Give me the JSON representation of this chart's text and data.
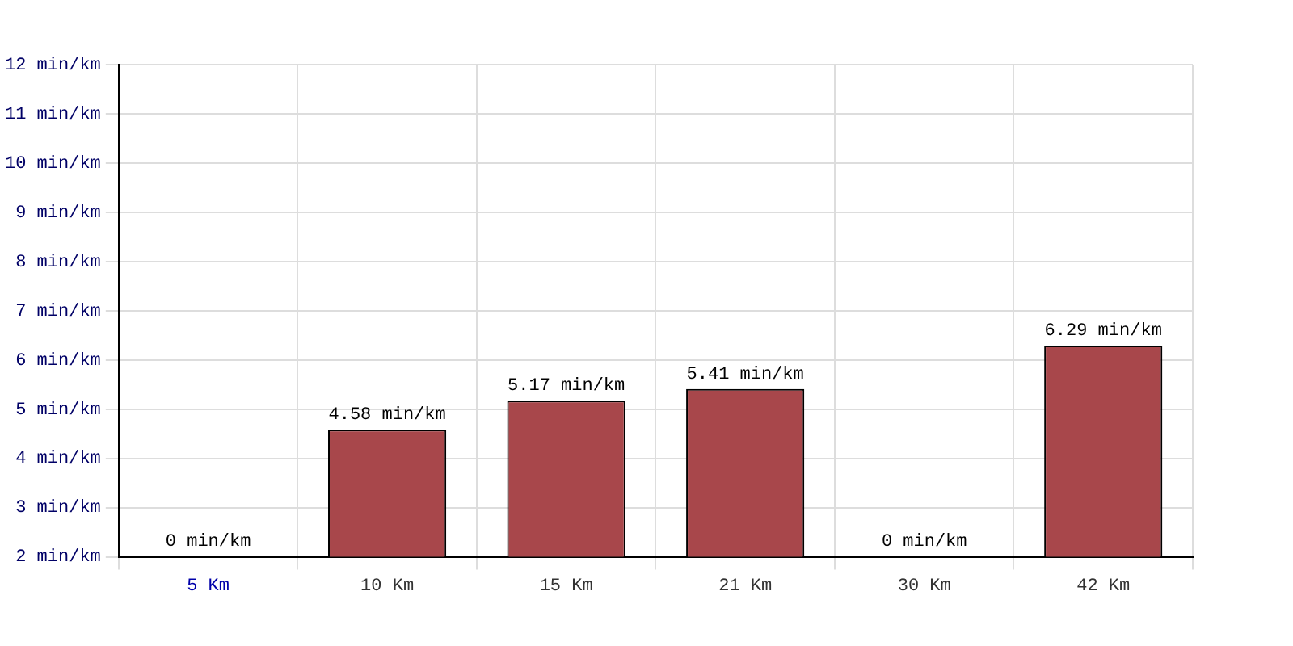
{
  "chart_data": {
    "type": "bar",
    "categories": [
      "5 Km",
      "10 Km",
      "15 Km",
      "21 Km",
      "30 Km",
      "42 Km"
    ],
    "values": [
      null,
      4.58,
      5.17,
      5.41,
      null,
      6.29
    ],
    "value_labels": [
      "0 min/km",
      "4.58 min/km",
      "5.17 min/km",
      "5.41 min/km",
      "0 min/km",
      "6.29 min/km"
    ],
    "color": "#a8474b",
    "ylim": [
      2,
      12
    ],
    "yticks": [
      {
        "value": 2,
        "label": "2 min/km"
      },
      {
        "value": 3,
        "label": "3 min/km"
      },
      {
        "value": 4,
        "label": "4 min/km"
      },
      {
        "value": 5,
        "label": "5 min/km"
      },
      {
        "value": 6,
        "label": "6 min/km"
      },
      {
        "value": 7,
        "label": "7 min/km"
      },
      {
        "value": 8,
        "label": "8 min/km"
      },
      {
        "value": 9,
        "label": "9 min/km"
      },
      {
        "value": 10,
        "label": "10 min/km"
      },
      {
        "value": 11,
        "label": "11 min/km"
      },
      {
        "value": 12,
        "label": "12 min/km"
      }
    ],
    "grid": true,
    "legend": false
  }
}
